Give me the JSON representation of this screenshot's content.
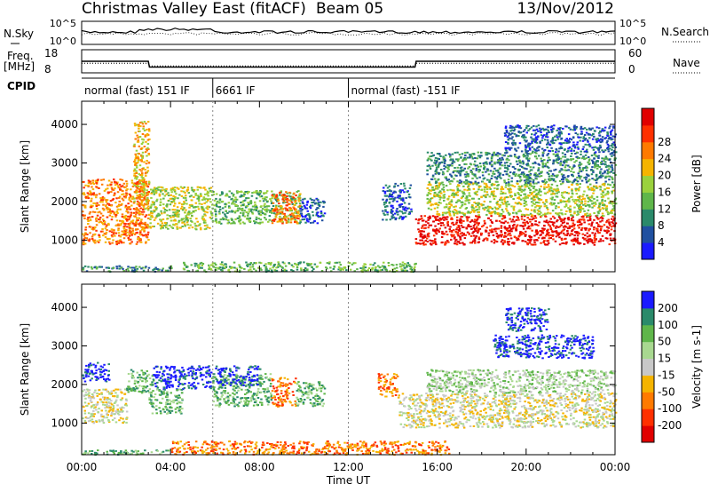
{
  "header": {
    "title": "Christmas Valley East (fitACF)",
    "beam": "Beam 05",
    "date": "13/Nov/2012"
  },
  "strip_labels": {
    "nsky": "N.Sky",
    "nsky_ticks": [
      "10^5",
      "10^0"
    ],
    "nsearch": "N.Search",
    "nsearch_ticks": [
      "10^5",
      "10^0"
    ],
    "freq": "Freq.",
    "freq_unit": "[MHz]",
    "freq_ticks": [
      "18",
      "8"
    ],
    "nave": "Nave",
    "nave_ticks": [
      "60",
      "0"
    ],
    "cpid": "CPID"
  },
  "cpid_segments": [
    {
      "label": "normal (fast) 151 IF",
      "start_h": 0.0,
      "end_h": 5.9
    },
    {
      "label": "6661 IF",
      "start_h": 5.9,
      "end_h": 12.0
    },
    {
      "label": "normal (fast) -151 IF",
      "start_h": 12.0,
      "end_h": 24.0
    }
  ],
  "freq_series": {
    "freq_mhz": [
      [
        0,
        13
      ],
      [
        3,
        13
      ],
      [
        3.05,
        10.5
      ],
      [
        15,
        10.5
      ],
      [
        15.05,
        13
      ],
      [
        24,
        13
      ]
    ],
    "nave": [
      [
        0,
        25
      ],
      [
        3,
        25
      ],
      [
        3.05,
        18
      ],
      [
        15,
        18
      ],
      [
        15.05,
        25
      ],
      [
        24,
        25
      ]
    ]
  },
  "chart_data": [
    {
      "type": "heatmap",
      "name": "power",
      "ylabel": "Slant Range [km]",
      "yticks": [
        "1000",
        "2000",
        "3000",
        "4000"
      ],
      "ylim": [
        180,
        4600
      ],
      "xlim": [
        0,
        24
      ],
      "colorbar": {
        "label": "Power [dB]",
        "ticks": [
          "4",
          "8",
          "12",
          "16",
          "20",
          "24",
          "28"
        ],
        "colors": [
          "#1a1aff",
          "#2050a0",
          "#2a8a6a",
          "#5fb64a",
          "#9ad13c",
          "#f5b400",
          "#ff7a00",
          "#ff3000",
          "#e00000"
        ]
      },
      "bands": [
        {
          "t0": 0.0,
          "t1": 3.0,
          "r0": 900,
          "r1": 2600,
          "level": 6
        },
        {
          "t0": 2.3,
          "t1": 3.0,
          "r0": 1800,
          "r1": 4100,
          "level": 5
        },
        {
          "t0": 3.0,
          "t1": 5.8,
          "r0": 1300,
          "r1": 2400,
          "level": 4
        },
        {
          "t0": 5.8,
          "t1": 9.8,
          "r0": 1450,
          "r1": 2300,
          "level": 3
        },
        {
          "t0": 8.5,
          "t1": 9.8,
          "r0": 1450,
          "r1": 2300,
          "level": 6
        },
        {
          "t0": 9.8,
          "t1": 10.9,
          "r0": 1450,
          "r1": 2100,
          "level": 1
        },
        {
          "t0": 13.5,
          "t1": 14.8,
          "r0": 1550,
          "r1": 2500,
          "level": 1
        },
        {
          "t0": 15.0,
          "t1": 24.0,
          "r0": 900,
          "r1": 1650,
          "level": 8
        },
        {
          "t0": 15.5,
          "t1": 24.0,
          "r0": 1650,
          "r1": 2500,
          "level": 4
        },
        {
          "t0": 15.5,
          "t1": 24.0,
          "r0": 2500,
          "r1": 3300,
          "level": 2
        },
        {
          "t0": 19.0,
          "t1": 24.0,
          "r0": 3300,
          "r1": 4000,
          "level": 1
        },
        {
          "t0": 4.5,
          "t1": 15.0,
          "r0": 200,
          "r1": 450,
          "level": 3
        },
        {
          "t0": 0.0,
          "t1": 4.0,
          "r0": 200,
          "r1": 350,
          "level": 2
        }
      ]
    },
    {
      "type": "heatmap",
      "name": "velocity",
      "ylabel": "Slant Range [km]",
      "yticks": [
        "1000",
        "2000",
        "3000",
        "4000"
      ],
      "ylim": [
        180,
        4600
      ],
      "xlim": [
        0,
        24
      ],
      "xlabel": "Time UT",
      "xticks": [
        "00:00",
        "04:00",
        "08:00",
        "12:00",
        "16:00",
        "20:00",
        "00:00"
      ],
      "colorbar": {
        "label": "Velocity [m s-1]",
        "ticks": [
          "200",
          "100",
          "50",
          "15",
          "-15",
          "-50",
          "-100",
          "-200"
        ],
        "colors": [
          "#1a1aff",
          "#2a8a6a",
          "#5fb64a",
          "#a8d890",
          "#c8c8c8",
          "#f5b400",
          "#ff7a00",
          "#ff3000",
          "#e00000"
        ]
      },
      "bands": [
        {
          "t0": 0.0,
          "t1": 2.0,
          "r0": 1000,
          "r1": 1900,
          "level": 4
        },
        {
          "t0": 0.0,
          "t1": 1.2,
          "r0": 2100,
          "r1": 2600,
          "level": 0
        },
        {
          "t0": 2.0,
          "t1": 3.2,
          "r0": 1800,
          "r1": 2400,
          "level": 2
        },
        {
          "t0": 3.2,
          "t1": 5.8,
          "r0": 1900,
          "r1": 2500,
          "level": 0
        },
        {
          "t0": 3.0,
          "t1": 4.5,
          "r0": 1250,
          "r1": 1900,
          "level": 2
        },
        {
          "t0": 5.8,
          "t1": 8.5,
          "r0": 1450,
          "r1": 2300,
          "level": 2
        },
        {
          "t0": 6.0,
          "t1": 8.0,
          "r0": 2000,
          "r1": 2500,
          "level": 0
        },
        {
          "t0": 8.5,
          "t1": 9.6,
          "r0": 1450,
          "r1": 2200,
          "level": 6
        },
        {
          "t0": 9.6,
          "t1": 10.9,
          "r0": 1450,
          "r1": 2100,
          "level": 2
        },
        {
          "t0": 13.3,
          "t1": 14.2,
          "r0": 1700,
          "r1": 2300,
          "level": 6
        },
        {
          "t0": 14.2,
          "t1": 24.0,
          "r0": 900,
          "r1": 1800,
          "level": 4
        },
        {
          "t0": 15.5,
          "t1": 24.0,
          "r0": 1800,
          "r1": 2400,
          "level": 3
        },
        {
          "t0": 18.5,
          "t1": 23.0,
          "r0": 2700,
          "r1": 3300,
          "level": 0
        },
        {
          "t0": 19.0,
          "t1": 21.0,
          "r0": 3400,
          "r1": 4000,
          "level": 0
        },
        {
          "t0": 4.0,
          "t1": 16.5,
          "r0": 200,
          "r1": 550,
          "level": 6
        },
        {
          "t0": 0.0,
          "t1": 4.0,
          "r0": 200,
          "r1": 320,
          "level": 2
        }
      ]
    }
  ]
}
